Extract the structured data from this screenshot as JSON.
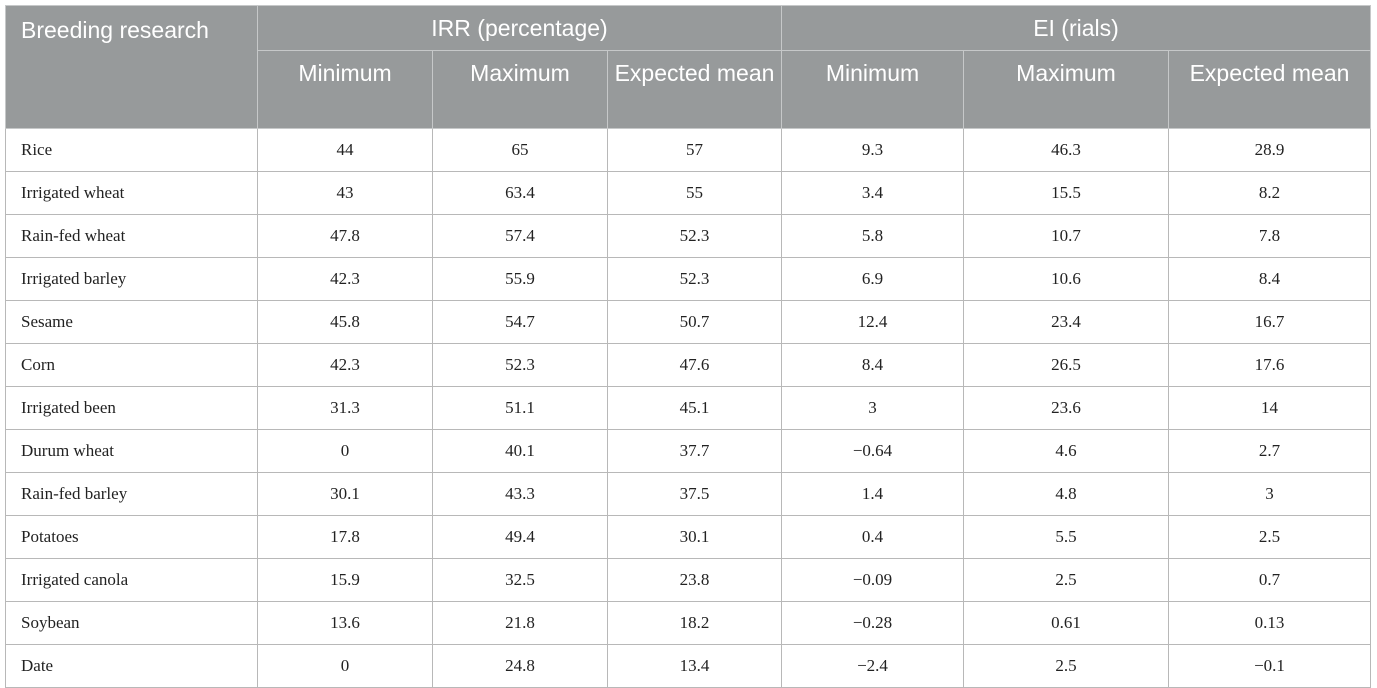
{
  "table": {
    "corner_header": "Breeding research",
    "groups": [
      "IRR (percentage)",
      "EI (rials)"
    ],
    "subheaders": [
      "Minimum",
      "Maximum",
      "Expected mean",
      "Minimum",
      "Maximum",
      "Expected mean"
    ],
    "rows": [
      {
        "label": "Rice",
        "values": [
          "44",
          "65",
          "57",
          "9.3",
          "46.3",
          "28.9"
        ]
      },
      {
        "label": "Irrigated wheat",
        "values": [
          "43",
          "63.4",
          "55",
          "3.4",
          "15.5",
          "8.2"
        ]
      },
      {
        "label": "Rain-fed wheat",
        "values": [
          "47.8",
          "57.4",
          "52.3",
          "5.8",
          "10.7",
          "7.8"
        ]
      },
      {
        "label": "Irrigated barley",
        "values": [
          "42.3",
          "55.9",
          "52.3",
          "6.9",
          "10.6",
          "8.4"
        ]
      },
      {
        "label": "Sesame",
        "values": [
          "45.8",
          "54.7",
          "50.7",
          "12.4",
          "23.4",
          "16.7"
        ]
      },
      {
        "label": "Corn",
        "values": [
          "42.3",
          "52.3",
          "47.6",
          "8.4",
          "26.5",
          "17.6"
        ]
      },
      {
        "label": "Irrigated been",
        "values": [
          "31.3",
          "51.1",
          "45.1",
          "3",
          "23.6",
          "14"
        ]
      },
      {
        "label": "Durum wheat",
        "values": [
          "0",
          "40.1",
          "37.7",
          "−0.64",
          "4.6",
          "2.7"
        ]
      },
      {
        "label": "Rain-fed barley",
        "values": [
          "30.1",
          "43.3",
          "37.5",
          "1.4",
          "4.8",
          "3"
        ]
      },
      {
        "label": "Potatoes",
        "values": [
          "17.8",
          "49.4",
          "30.1",
          "0.4",
          "5.5",
          "2.5"
        ]
      },
      {
        "label": "Irrigated canola",
        "values": [
          "15.9",
          "32.5",
          "23.8",
          "−0.09",
          "2.5",
          "0.7"
        ]
      },
      {
        "label": "Soybean",
        "values": [
          "13.6",
          "21.8",
          "18.2",
          "−0.28",
          "0.61",
          "0.13"
        ]
      },
      {
        "label": "Date",
        "values": [
          "0",
          "24.8",
          "13.4",
          "−2.4",
          "2.5",
          "−0.1"
        ]
      }
    ]
  },
  "colors": {
    "header_background": "#979a9b",
    "header_text": "#ffffff",
    "grid_line": "#b8b8b8",
    "body_text": "#222222"
  }
}
